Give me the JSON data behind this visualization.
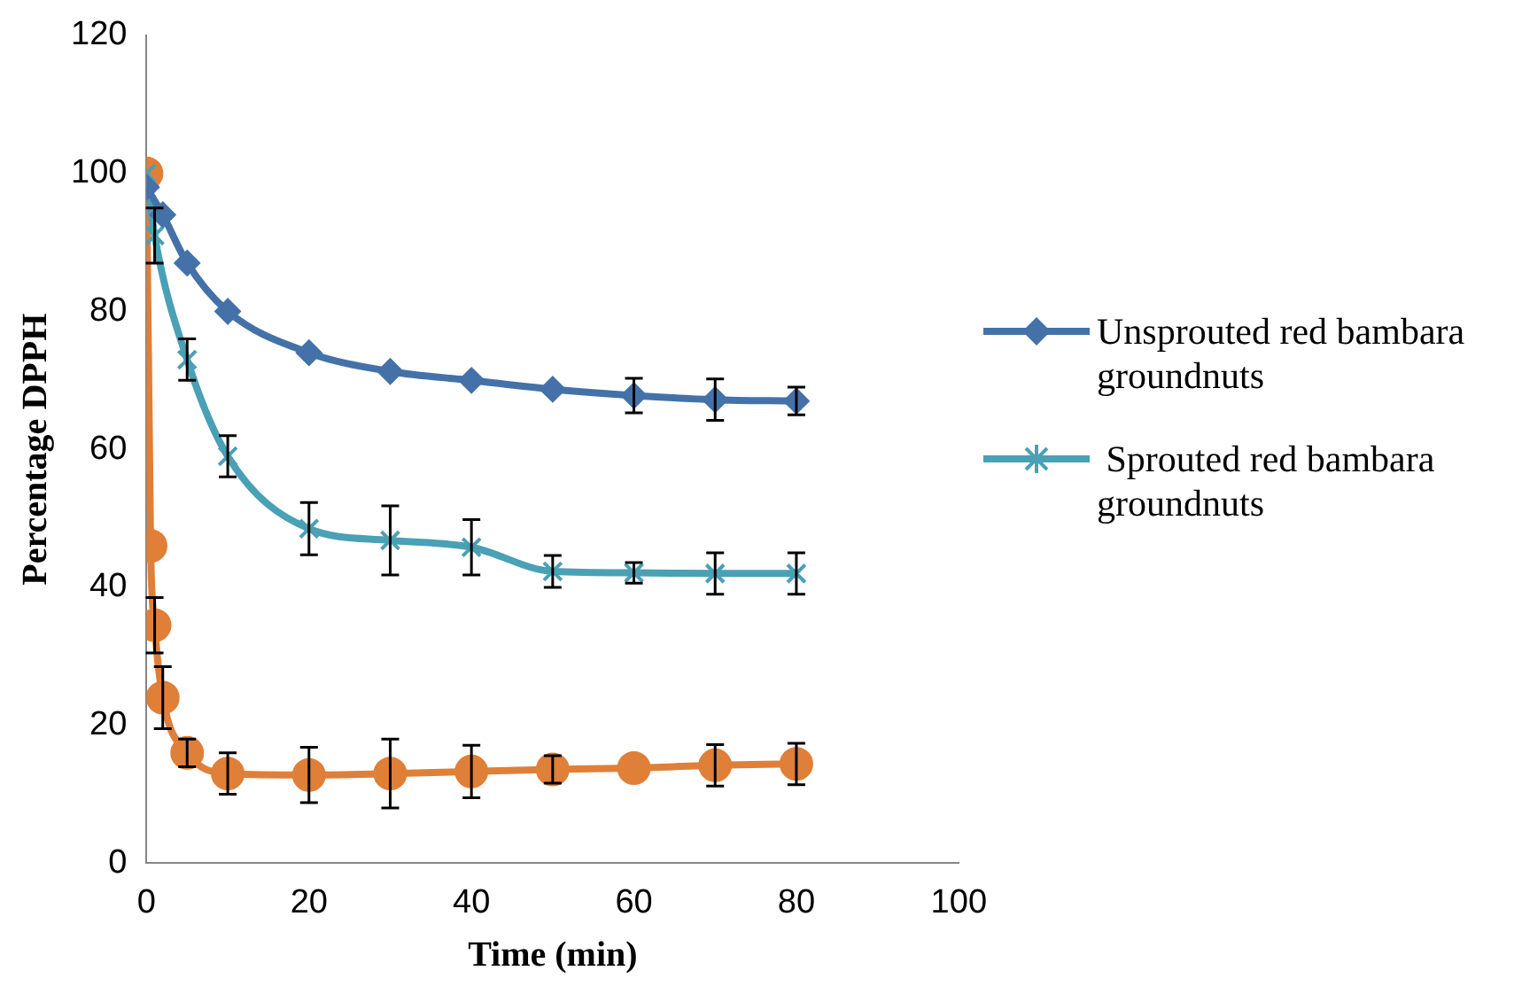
{
  "chart_data": {
    "type": "line",
    "xlabel": "Time (min)",
    "ylabel": "Percentage DPPH",
    "xlim": [
      0,
      100
    ],
    "xticks": [
      0,
      20,
      40,
      60,
      80,
      100
    ],
    "ylim": [
      0,
      120
    ],
    "yticks": [
      0,
      20,
      40,
      60,
      80,
      100,
      120
    ],
    "grid": false,
    "legend": "right",
    "line_style": "solid",
    "series": [
      {
        "name": "Unsprouted red bambara groundnuts",
        "color": "#4472a8",
        "marker": "diamond",
        "x": [
          0,
          2,
          5,
          10,
          20,
          30,
          40,
          50,
          60,
          70,
          80
        ],
        "values": [
          98,
          94,
          87,
          80,
          74,
          71.3,
          70,
          68.7,
          67.8,
          67.2,
          67
        ],
        "errors": [
          null,
          null,
          null,
          null,
          null,
          null,
          null,
          null,
          2.5,
          3,
          2
        ]
      },
      {
        "name": " Sprouted red bambara groundnuts",
        "color": "#4aa0b5",
        "marker": "cross",
        "x": [
          0,
          1,
          5,
          10,
          20,
          30,
          40,
          50,
          60,
          70,
          80
        ],
        "values": [
          100,
          91,
          73,
          59,
          48.5,
          46.8,
          45.8,
          42.3,
          42.1,
          42,
          42
        ],
        "errors": [
          null,
          4,
          3,
          3,
          3.8,
          5,
          4,
          2.3,
          1.5,
          3,
          3
        ]
      },
      {
        "color": "#e07f38",
        "marker": "circle",
        "x": [
          0,
          0.5,
          1,
          2,
          5,
          10,
          20,
          30,
          40,
          50,
          60,
          70,
          80
        ],
        "values": [
          100,
          46,
          34.5,
          24,
          16,
          13,
          12.8,
          13,
          13.3,
          13.6,
          13.8,
          14.2,
          14.4
        ],
        "errors": [
          null,
          null,
          4,
          4.5,
          2,
          3,
          4,
          5,
          3.8,
          2,
          null,
          3,
          3
        ]
      }
    ]
  }
}
